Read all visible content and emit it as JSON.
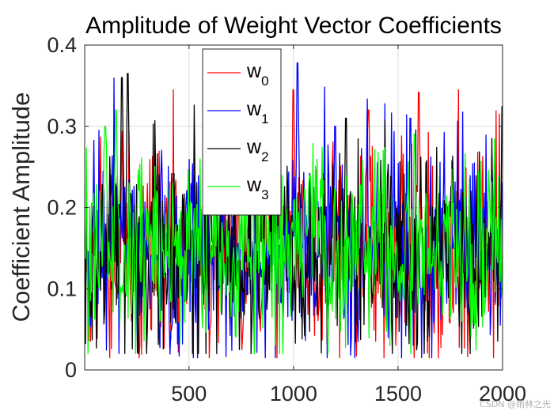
{
  "chart_data": {
    "type": "line",
    "title": "Amplitude of Weight Vector Coefficients",
    "xlabel": "",
    "ylabel": "Coefficient Amplitude",
    "xlim": [
      1,
      2000
    ],
    "ylim": [
      0,
      0.4
    ],
    "x_ticks": [
      500,
      1000,
      1500,
      2000
    ],
    "x_tick_labels": [
      "500",
      "1000",
      "1500",
      "2000"
    ],
    "y_ticks": [
      0,
      0.1,
      0.2,
      0.3,
      0.4
    ],
    "y_tick_labels": [
      "0",
      "0.1",
      "0.2",
      "0.3",
      "0.4"
    ],
    "grid": true,
    "legend_position": "top-center",
    "n_samples": 2000,
    "series": [
      {
        "name": "w0",
        "base": "w",
        "sub": "0",
        "color": "#ff0000",
        "mean": 0.148,
        "std": 0.068,
        "min": 0.015,
        "max": 0.345,
        "peaks": [
          [
            1000,
            0.345
          ],
          [
            1600,
            0.342
          ],
          [
            1360,
            0.32
          ],
          [
            810,
            0.255
          ]
        ]
      },
      {
        "name": "w1",
        "base": "w",
        "sub": "1",
        "color": "#0000ff",
        "mean": 0.15,
        "std": 0.068,
        "min": 0.015,
        "max": 0.378,
        "peaks": [
          [
            1020,
            0.378
          ],
          [
            1200,
            0.3
          ],
          [
            1560,
            0.31
          ]
        ]
      },
      {
        "name": "w2",
        "base": "w",
        "sub": "2",
        "color": "#000000",
        "mean": 0.15,
        "std": 0.068,
        "min": 0.02,
        "max": 0.365,
        "peaks": [
          [
            180,
            0.36
          ],
          [
            208,
            0.365
          ],
          [
            1250,
            0.31
          ],
          [
            2000,
            0.325
          ]
        ]
      },
      {
        "name": "w3",
        "base": "w",
        "sub": "3",
        "color": "#00ff00",
        "mean": 0.15,
        "std": 0.06,
        "min": 0.02,
        "max": 0.32,
        "peaks": [
          [
            150,
            0.32
          ],
          [
            100,
            0.3
          ],
          [
            1580,
            0.29
          ]
        ]
      }
    ]
  },
  "watermark": "CSDN @雨林之光"
}
